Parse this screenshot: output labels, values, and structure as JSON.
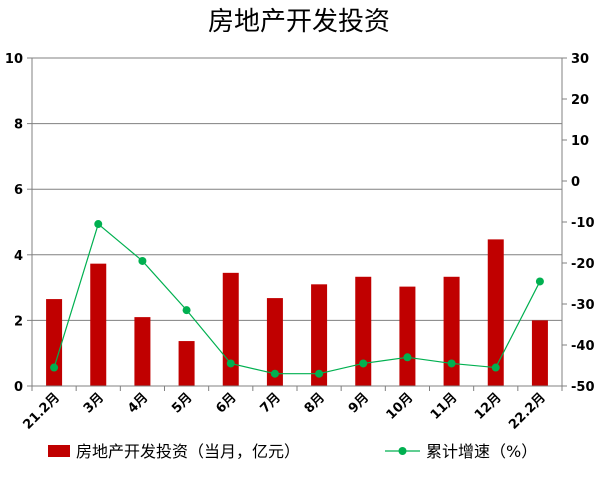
{
  "chart_data": {
    "type": "bar",
    "title": "房地产开发投资",
    "categories": [
      "21.2月",
      "3月",
      "4月",
      "5月",
      "6月",
      "7月",
      "8月",
      "9月",
      "10月",
      "11月",
      "12月",
      "22.2月"
    ],
    "series": [
      {
        "name": "房地产开发投资（当月，亿元）",
        "type": "bar",
        "axis": "left",
        "color": "#C00000",
        "values": [
          2.65,
          3.73,
          2.1,
          1.37,
          3.45,
          2.68,
          3.1,
          3.33,
          3.03,
          3.33,
          4.47,
          2.0
        ]
      },
      {
        "name": "累计增速（%）",
        "type": "line",
        "axis": "right",
        "color": "#00B050",
        "values": [
          -45.5,
          -10.5,
          -19.5,
          -31.5,
          -44.5,
          -47.0,
          -47.0,
          -44.5,
          -43.0,
          -44.5,
          -45.5,
          -24.5
        ]
      }
    ],
    "ylim_left": [
      0,
      10
    ],
    "yticks_left": [
      "0",
      "2",
      "4",
      "6",
      "8",
      "10"
    ],
    "ylim_right": [
      -50,
      30
    ],
    "yticks_right": [
      "-50",
      "-40",
      "-30",
      "-20",
      "-10",
      "0",
      "10",
      "20",
      "30"
    ],
    "grid": true,
    "legend_position": "bottom"
  }
}
